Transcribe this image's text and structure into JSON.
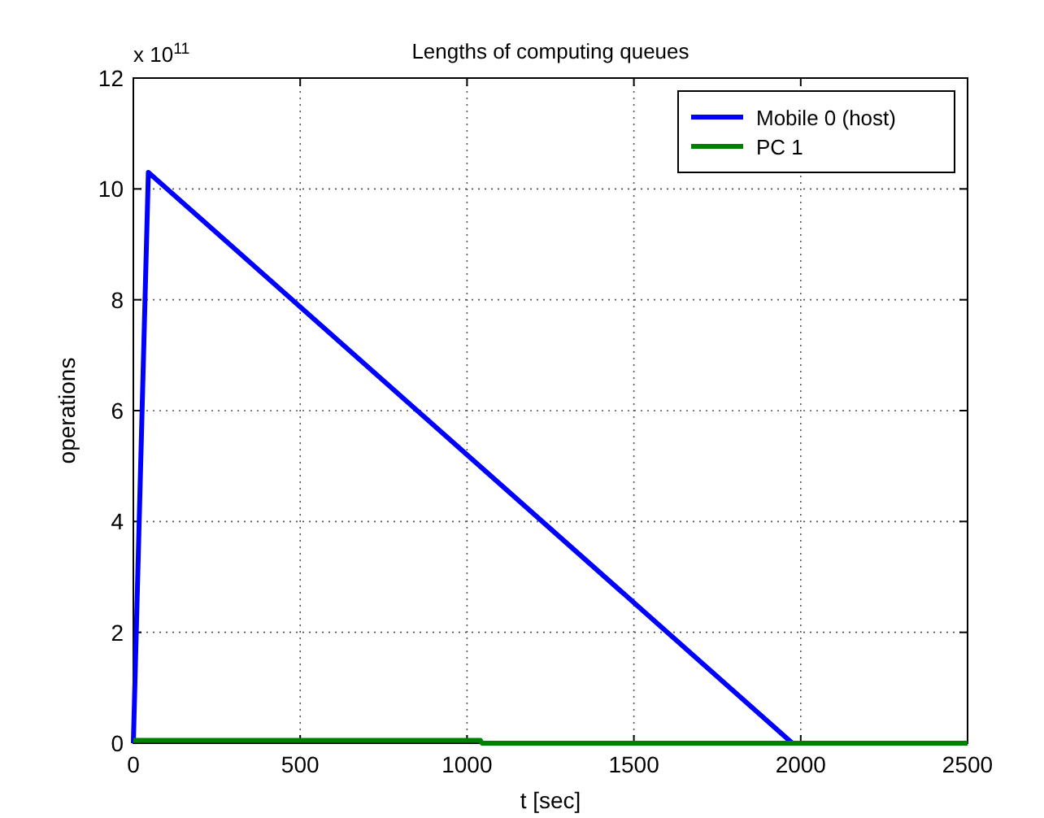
{
  "chart_data": {
    "type": "line",
    "title": "Lengths of computing queues",
    "xlabel": "t [sec]",
    "ylabel": "operations",
    "annotations": [
      "x 10$^{11}$"
    ],
    "xlim": [
      0,
      2500
    ],
    "xticks": [
      0,
      500,
      1000,
      1500,
      2000,
      2500
    ],
    "ylim": [
      0,
      12
    ],
    "yticks": [
      0,
      2,
      4,
      6,
      8,
      10,
      12
    ],
    "grid": true,
    "legend": "top right",
    "marker": "none",
    "line_style": "solid",
    "series": [
      {
        "name": "Mobile 0 (host)",
        "color": "#0000ff",
        "x": [
          0,
          45,
          1975,
          2500
        ],
        "values": [
          0,
          10.3,
          0,
          0
        ]
      },
      {
        "name": "PC 1",
        "color": "#008000",
        "x": [
          0,
          1040,
          1045,
          2500
        ],
        "values": [
          0.05,
          0.05,
          0,
          0
        ]
      }
    ]
  }
}
